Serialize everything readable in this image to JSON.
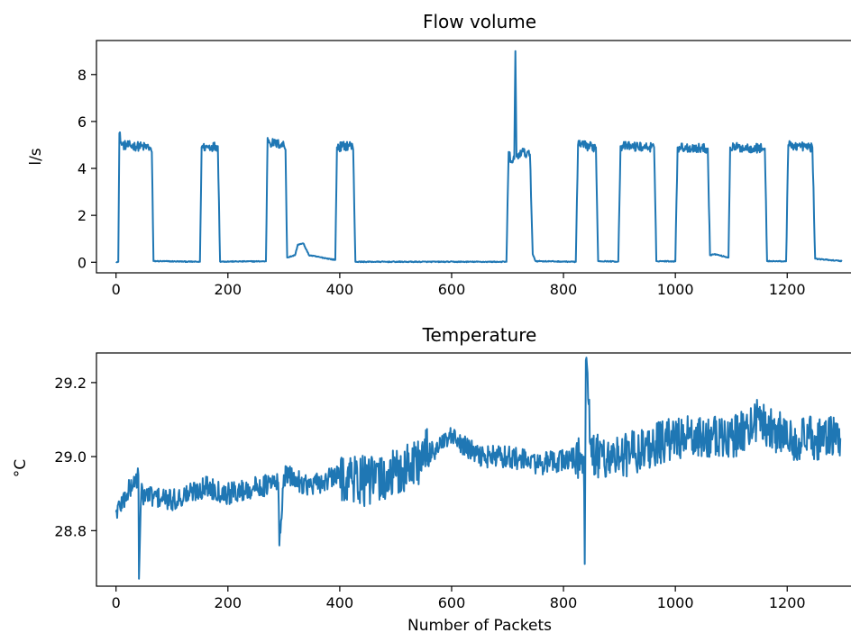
{
  "chart_data": [
    {
      "type": "line",
      "title": "Flow volume",
      "xlabel": "",
      "ylabel": "l/s",
      "xlim": [
        -35,
        1335
      ],
      "ylim": [
        -0.45,
        9.45
      ],
      "xticks": [
        0,
        200,
        400,
        600,
        800,
        1000,
        1200
      ],
      "yticks": [
        0,
        2,
        4,
        6,
        8
      ],
      "color": "#1f77b4",
      "grid": false,
      "legend": "none",
      "anchors": [
        [
          0,
          0.02
        ],
        [
          4,
          0.02
        ],
        [
          6,
          5.5
        ],
        [
          10,
          5.0
        ],
        [
          60,
          4.9
        ],
        [
          64,
          4.7
        ],
        [
          67,
          0.05
        ],
        [
          150,
          0.02
        ],
        [
          153,
          4.9
        ],
        [
          182,
          4.95
        ],
        [
          186,
          0.03
        ],
        [
          268,
          0.04
        ],
        [
          271,
          5.3
        ],
        [
          275,
          5.1
        ],
        [
          300,
          5.0
        ],
        [
          303,
          4.8
        ],
        [
          306,
          0.2
        ],
        [
          320,
          0.3
        ],
        [
          325,
          0.75
        ],
        [
          335,
          0.8
        ],
        [
          345,
          0.3
        ],
        [
          392,
          0.1
        ],
        [
          395,
          4.9
        ],
        [
          420,
          5.0
        ],
        [
          424,
          4.8
        ],
        [
          428,
          0.02
        ],
        [
          698,
          0.02
        ],
        [
          702,
          4.7
        ],
        [
          706,
          4.3
        ],
        [
          712,
          4.4
        ],
        [
          714,
          9.0
        ],
        [
          716,
          4.5
        ],
        [
          725,
          4.7
        ],
        [
          740,
          4.6
        ],
        [
          745,
          0.35
        ],
        [
          750,
          0.05
        ],
        [
          822,
          0.02
        ],
        [
          826,
          5.0
        ],
        [
          858,
          4.9
        ],
        [
          862,
          0.05
        ],
        [
          898,
          0.03
        ],
        [
          902,
          4.95
        ],
        [
          962,
          4.9
        ],
        [
          966,
          0.05
        ],
        [
          1000,
          0.04
        ],
        [
          1004,
          4.9
        ],
        [
          1058,
          4.85
        ],
        [
          1062,
          0.3
        ],
        [
          1070,
          0.35
        ],
        [
          1095,
          0.2
        ],
        [
          1098,
          4.9
        ],
        [
          1160,
          4.85
        ],
        [
          1164,
          0.05
        ],
        [
          1198,
          0.04
        ],
        [
          1202,
          5.0
        ],
        [
          1245,
          4.9
        ],
        [
          1250,
          0.15
        ],
        [
          1298,
          0.05
        ]
      ]
    },
    {
      "type": "line",
      "title": "Temperature",
      "xlabel": "Number of Packets",
      "ylabel": "°C",
      "xlim": [
        -35,
        1335
      ],
      "ylim": [
        28.65,
        29.28
      ],
      "xticks": [
        0,
        200,
        400,
        600,
        800,
        1000,
        1200
      ],
      "yticks": [
        28.8,
        29.0,
        29.2
      ],
      "color": "#1f77b4",
      "grid": false,
      "legend": "none",
      "anchors": [
        [
          0,
          28.85
        ],
        [
          20,
          28.9
        ],
        [
          40,
          28.95
        ],
        [
          41,
          28.67
        ],
        [
          45,
          28.9
        ],
        [
          100,
          28.88
        ],
        [
          160,
          28.92
        ],
        [
          200,
          28.9
        ],
        [
          290,
          28.93
        ],
        [
          292,
          28.76
        ],
        [
          300,
          28.95
        ],
        [
          350,
          28.92
        ],
        [
          400,
          28.95
        ],
        [
          450,
          28.93
        ],
        [
          500,
          28.95
        ],
        [
          550,
          29.0
        ],
        [
          600,
          29.05
        ],
        [
          650,
          29.0
        ],
        [
          700,
          29.0
        ],
        [
          760,
          28.98
        ],
        [
          836,
          29.0
        ],
        [
          838,
          28.71
        ],
        [
          840,
          29.26
        ],
        [
          850,
          29.0
        ],
        [
          900,
          29.0
        ],
        [
          1000,
          29.05
        ],
        [
          1100,
          29.05
        ],
        [
          1150,
          29.1
        ],
        [
          1200,
          29.05
        ],
        [
          1295,
          29.05
        ]
      ]
    }
  ]
}
